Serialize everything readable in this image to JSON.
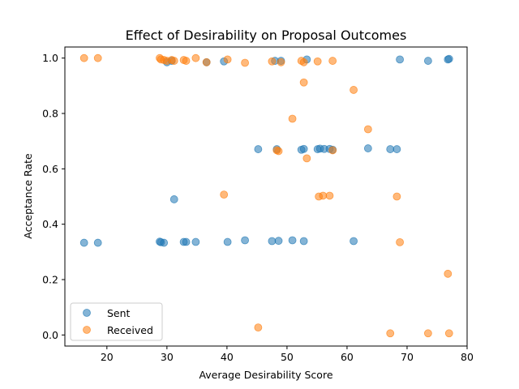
{
  "chart_data": {
    "type": "scatter",
    "title": "Effect of Desirability on Proposal Outcomes",
    "xlabel": "Average Desirability Score",
    "ylabel": "Acceptance Rate",
    "xlim": [
      13,
      80
    ],
    "ylim": [
      -0.04,
      1.04
    ],
    "xticks": [
      "20",
      "30",
      "40",
      "50",
      "60",
      "70",
      "80"
    ],
    "yticks": [
      "0.0",
      "0.2",
      "0.4",
      "0.6",
      "0.8",
      "1.0"
    ],
    "xtick_values": [
      20,
      30,
      40,
      50,
      60,
      70,
      80
    ],
    "ytick_values": [
      0.0,
      0.2,
      0.4,
      0.6,
      0.8,
      1.0
    ],
    "grid": false,
    "legend_position": "lower-left",
    "series": [
      {
        "name": "Sent",
        "color": "#1f77b4",
        "points": [
          [
            16.2,
            0.333
          ],
          [
            18.5,
            0.333
          ],
          [
            28.8,
            0.337
          ],
          [
            29.0,
            0.335
          ],
          [
            29.5,
            0.333
          ],
          [
            30.0,
            0.985
          ],
          [
            30.8,
            0.99
          ],
          [
            31.2,
            0.49
          ],
          [
            32.8,
            0.336
          ],
          [
            33.2,
            0.336
          ],
          [
            34.8,
            0.336
          ],
          [
            36.6,
            0.985
          ],
          [
            39.5,
            0.988
          ],
          [
            40.1,
            0.336
          ],
          [
            43.0,
            0.342
          ],
          [
            45.2,
            0.671
          ],
          [
            47.5,
            0.339
          ],
          [
            48.0,
            0.99
          ],
          [
            48.3,
            0.671
          ],
          [
            48.6,
            0.34
          ],
          [
            49.0,
            0.99
          ],
          [
            50.9,
            0.342
          ],
          [
            52.4,
            0.669
          ],
          [
            52.8,
            0.672
          ],
          [
            52.8,
            0.339
          ],
          [
            53.3,
            0.995
          ],
          [
            55.1,
            0.671
          ],
          [
            55.5,
            0.673
          ],
          [
            56.2,
            0.672
          ],
          [
            57.1,
            0.672
          ],
          [
            57.6,
            0.669
          ],
          [
            61.1,
            0.339
          ],
          [
            63.5,
            0.674
          ],
          [
            67.2,
            0.671
          ],
          [
            68.3,
            0.671
          ],
          [
            68.8,
            0.995
          ],
          [
            73.5,
            0.99
          ],
          [
            76.8,
            0.995
          ],
          [
            77.0,
            0.997
          ]
        ]
      },
      {
        "name": "Received",
        "color": "#ff7f0e",
        "points": [
          [
            16.2,
            1.0
          ],
          [
            18.5,
            1.0
          ],
          [
            28.8,
            1.0
          ],
          [
            29.0,
            0.995
          ],
          [
            29.5,
            0.993
          ],
          [
            30.0,
            0.99
          ],
          [
            30.8,
            0.993
          ],
          [
            31.2,
            0.99
          ],
          [
            32.8,
            0.993
          ],
          [
            33.2,
            0.99
          ],
          [
            34.8,
            1.0
          ],
          [
            36.6,
            0.985
          ],
          [
            39.5,
            0.507
          ],
          [
            40.1,
            0.995
          ],
          [
            43.0,
            0.983
          ],
          [
            45.2,
            0.027
          ],
          [
            47.5,
            0.988
          ],
          [
            48.3,
            0.667
          ],
          [
            48.6,
            0.664
          ],
          [
            49.0,
            0.985
          ],
          [
            50.9,
            0.781
          ],
          [
            52.4,
            0.99
          ],
          [
            52.8,
            0.985
          ],
          [
            52.8,
            0.912
          ],
          [
            53.3,
            0.638
          ],
          [
            55.1,
            0.988
          ],
          [
            55.3,
            0.5
          ],
          [
            56.0,
            0.503
          ],
          [
            57.1,
            0.503
          ],
          [
            57.6,
            0.667
          ],
          [
            57.6,
            0.99
          ],
          [
            61.1,
            0.885
          ],
          [
            63.5,
            0.743
          ],
          [
            67.2,
            0.006
          ],
          [
            68.3,
            0.5
          ],
          [
            68.8,
            0.335
          ],
          [
            73.5,
            0.006
          ],
          [
            76.8,
            0.221
          ],
          [
            77.0,
            0.006
          ]
        ]
      }
    ]
  }
}
